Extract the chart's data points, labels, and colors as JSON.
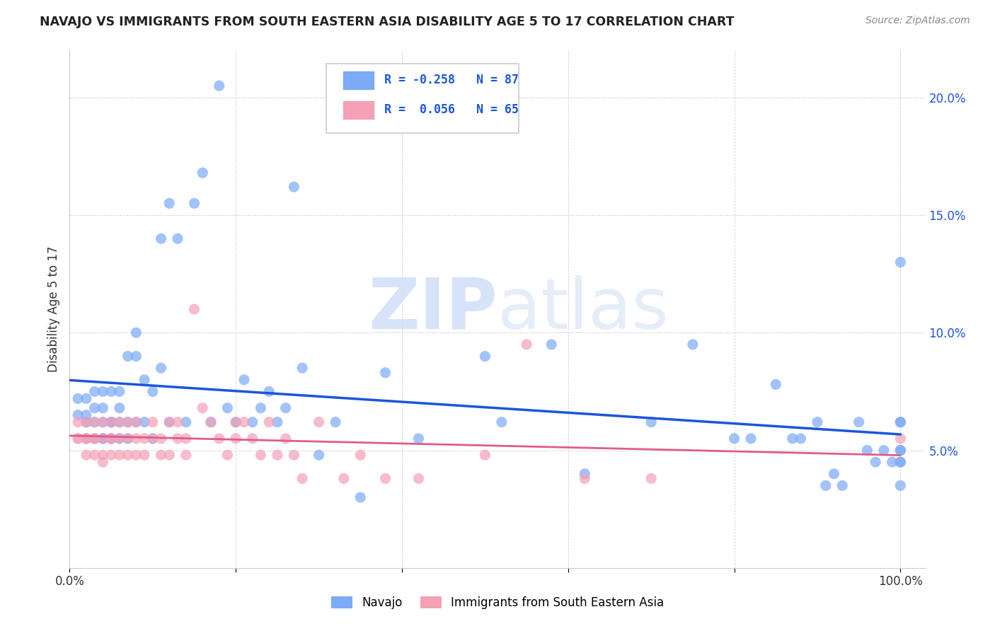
{
  "title": "NAVAJO VS IMMIGRANTS FROM SOUTH EASTERN ASIA DISABILITY AGE 5 TO 17 CORRELATION CHART",
  "source": "Source: ZipAtlas.com",
  "ylabel": "Disability Age 5 to 17",
  "navajo_R": -0.258,
  "navajo_N": 87,
  "immigrant_R": 0.056,
  "immigrant_N": 65,
  "navajo_color": "#7baaf7",
  "immigrant_color": "#f4a0b5",
  "navajo_line_color": "#1a56db",
  "immigrant_line_color": "#e05c8a",
  "background_color": "#ffffff",
  "watermark_zip": "ZIP",
  "watermark_atlas": "atlas",
  "ytick_vals": [
    0.0,
    0.05,
    0.1,
    0.15,
    0.2
  ],
  "ytick_labels": [
    "",
    "5.0%",
    "10.0%",
    "15.0%",
    "20.0%"
  ],
  "xtick_vals": [
    0.0,
    0.2,
    0.4,
    0.6,
    0.8,
    1.0
  ],
  "xtick_labels": [
    "0.0%",
    "",
    "",
    "",
    "",
    "100.0%"
  ],
  "ylim": [
    0.0,
    0.22
  ],
  "xlim": [
    0.0,
    1.03
  ],
  "navajo_x": [
    0.01,
    0.01,
    0.02,
    0.02,
    0.02,
    0.02,
    0.03,
    0.03,
    0.03,
    0.03,
    0.04,
    0.04,
    0.04,
    0.04,
    0.04,
    0.05,
    0.05,
    0.05,
    0.05,
    0.05,
    0.06,
    0.06,
    0.06,
    0.06,
    0.07,
    0.07,
    0.07,
    0.08,
    0.08,
    0.08,
    0.09,
    0.09,
    0.1,
    0.1,
    0.11,
    0.11,
    0.12,
    0.12,
    0.13,
    0.14,
    0.15,
    0.16,
    0.17,
    0.18,
    0.19,
    0.2,
    0.21,
    0.22,
    0.23,
    0.24,
    0.25,
    0.26,
    0.27,
    0.28,
    0.3,
    0.32,
    0.35,
    0.38,
    0.42,
    0.5,
    0.52,
    0.58,
    0.62,
    0.7,
    0.75,
    0.8,
    0.82,
    0.85,
    0.87,
    0.88,
    0.9,
    0.91,
    0.92,
    0.93,
    0.95,
    0.96,
    0.97,
    0.98,
    0.99,
    1.0,
    1.0,
    1.0,
    1.0,
    1.0,
    1.0,
    1.0,
    1.0
  ],
  "navajo_y": [
    0.065,
    0.072,
    0.065,
    0.072,
    0.062,
    0.055,
    0.062,
    0.068,
    0.055,
    0.075,
    0.055,
    0.062,
    0.055,
    0.068,
    0.075,
    0.055,
    0.062,
    0.075,
    0.055,
    0.062,
    0.062,
    0.055,
    0.068,
    0.075,
    0.09,
    0.055,
    0.062,
    0.1,
    0.062,
    0.09,
    0.08,
    0.062,
    0.075,
    0.055,
    0.085,
    0.14,
    0.155,
    0.062,
    0.14,
    0.062,
    0.155,
    0.168,
    0.062,
    0.205,
    0.068,
    0.062,
    0.08,
    0.062,
    0.068,
    0.075,
    0.062,
    0.068,
    0.162,
    0.085,
    0.048,
    0.062,
    0.03,
    0.083,
    0.055,
    0.09,
    0.062,
    0.095,
    0.04,
    0.062,
    0.095,
    0.055,
    0.055,
    0.078,
    0.055,
    0.055,
    0.062,
    0.035,
    0.04,
    0.035,
    0.062,
    0.05,
    0.045,
    0.05,
    0.045,
    0.062,
    0.05,
    0.05,
    0.062,
    0.035,
    0.045,
    0.045,
    0.13
  ],
  "immigrant_x": [
    0.01,
    0.01,
    0.01,
    0.02,
    0.02,
    0.02,
    0.02,
    0.03,
    0.03,
    0.03,
    0.03,
    0.04,
    0.04,
    0.04,
    0.04,
    0.05,
    0.05,
    0.05,
    0.05,
    0.06,
    0.06,
    0.06,
    0.07,
    0.07,
    0.07,
    0.08,
    0.08,
    0.08,
    0.09,
    0.09,
    0.1,
    0.1,
    0.11,
    0.11,
    0.12,
    0.12,
    0.13,
    0.13,
    0.14,
    0.14,
    0.15,
    0.16,
    0.17,
    0.18,
    0.19,
    0.2,
    0.2,
    0.21,
    0.22,
    0.23,
    0.24,
    0.25,
    0.26,
    0.27,
    0.28,
    0.3,
    0.33,
    0.35,
    0.38,
    0.42,
    0.5,
    0.55,
    0.62,
    0.7,
    1.0
  ],
  "immigrant_y": [
    0.055,
    0.062,
    0.055,
    0.055,
    0.048,
    0.062,
    0.055,
    0.055,
    0.048,
    0.062,
    0.055,
    0.055,
    0.048,
    0.062,
    0.045,
    0.055,
    0.048,
    0.062,
    0.055,
    0.048,
    0.062,
    0.055,
    0.048,
    0.055,
    0.062,
    0.055,
    0.048,
    0.062,
    0.055,
    0.048,
    0.055,
    0.062,
    0.048,
    0.055,
    0.062,
    0.048,
    0.055,
    0.062,
    0.048,
    0.055,
    0.11,
    0.068,
    0.062,
    0.055,
    0.048,
    0.062,
    0.055,
    0.062,
    0.055,
    0.048,
    0.062,
    0.048,
    0.055,
    0.048,
    0.038,
    0.062,
    0.038,
    0.048,
    0.038,
    0.038,
    0.048,
    0.095,
    0.038,
    0.038,
    0.055
  ]
}
